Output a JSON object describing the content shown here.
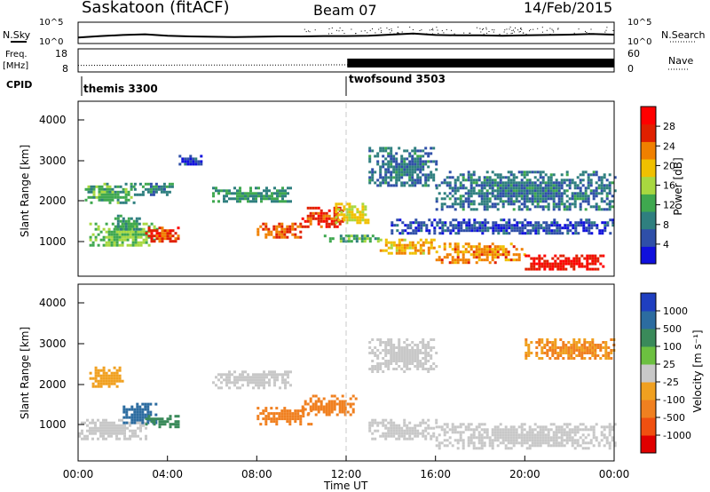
{
  "header": {
    "station": "Saskatoon (fitACF)",
    "beam": "Beam 07",
    "date": "14/Feb/2015"
  },
  "labels": {
    "nsky": "N.Sky",
    "nsearch": "N.Search",
    "freq": "Freq.",
    "mhz": "[MHz]",
    "nave": "Nave",
    "cpid": "CPID",
    "power_axis": "Power [dB]",
    "velocity_axis": "Velocity [m s⁻¹]",
    "ylabel": "Slant Range [km]",
    "xlabel": "Time UT"
  },
  "colors": {
    "power": [
      "#1010dd",
      "#2f4fa8",
      "#2f7f7f",
      "#3fa84f",
      "#a8d840",
      "#f0c000",
      "#f08000",
      "#e02000",
      "#ff0000"
    ],
    "velocity": [
      "#1f3fc0",
      "#2c6ca0",
      "#3a8a5a",
      "#6cc040",
      "#c8c8c8",
      "#f0a020",
      "#f08020",
      "#f05010",
      "#e00000"
    ],
    "frame_separator": "#c0c0c0"
  },
  "chart_data": [
    {
      "type": "line",
      "panel": "noise",
      "series": [
        {
          "name": "N.Sky",
          "x_hours": [
            0,
            1,
            2,
            3,
            4,
            5,
            6,
            7,
            8,
            9,
            10,
            11,
            12,
            13,
            14,
            15,
            16,
            17,
            18,
            19,
            20,
            21,
            22,
            23,
            24
          ],
          "values_log10": [
            1.2,
            1.6,
            1.9,
            2.1,
            1.7,
            1.5,
            1.4,
            1.3,
            1.4,
            1.5,
            1.5,
            1.6,
            1.6,
            1.7,
            2.0,
            2.3,
            1.9,
            1.8,
            1.8,
            1.7,
            1.8,
            1.9,
            2.0,
            2.2,
            2.0
          ]
        },
        {
          "name": "N.Search",
          "x_hours": [],
          "values_log10": []
        }
      ],
      "yticks": [
        "10^5",
        "10^0"
      ],
      "yticks_right": [
        "10^5",
        "10^0"
      ]
    },
    {
      "type": "line",
      "panel": "freq_nave",
      "series": [
        {
          "name": "Freq.",
          "x_hours": [
            0,
            3,
            6,
            9,
            12,
            12.05,
            24
          ],
          "values_mhz": [
            10.9,
            11.0,
            11.1,
            11.1,
            11.2,
            11.2,
            11.2
          ]
        },
        {
          "name": "Nave",
          "x_hours": [
            0,
            12,
            12.05,
            24
          ],
          "values": [
            0,
            0,
            20,
            20
          ]
        }
      ],
      "yticks": [
        "18",
        "8"
      ],
      "yticks_right": [
        "60",
        "0"
      ]
    },
    {
      "type": "table",
      "panel": "cpid",
      "segments": [
        {
          "start_h": 0,
          "label": "themis 3300"
        },
        {
          "start_h": 12,
          "label": "twofsound 3503"
        }
      ]
    },
    {
      "type": "heatmap",
      "panel": "power",
      "ylim": [
        180,
        4500
      ],
      "yticks": [
        "1000",
        "2000",
        "3000",
        "4000"
      ],
      "colorbar_ticks": [
        "28",
        "24",
        "20",
        "16",
        "12",
        "8",
        "4"
      ],
      "blobs": [
        {
          "t": [
            0.5,
            3.5
          ],
          "r": [
            900,
            1500
          ],
          "v": 14
        },
        {
          "t": [
            1.5,
            2.8
          ],
          "r": [
            1300,
            1700
          ],
          "v": 10
        },
        {
          "t": [
            3.0,
            4.5
          ],
          "r": [
            1000,
            1400
          ],
          "v": 26
        },
        {
          "t": [
            0.3,
            2.5
          ],
          "r": [
            2000,
            2500
          ],
          "v": 12
        },
        {
          "t": [
            2.5,
            4.2
          ],
          "r": [
            2200,
            2500
          ],
          "v": 9
        },
        {
          "t": [
            4.5,
            5.5
          ],
          "r": [
            2900,
            3200
          ],
          "v": 5
        },
        {
          "t": [
            6.0,
            9.5
          ],
          "r": [
            2000,
            2400
          ],
          "v": 10
        },
        {
          "t": [
            8.0,
            10.0
          ],
          "r": [
            1100,
            1500
          ],
          "v": 24
        },
        {
          "t": [
            10.0,
            11.8
          ],
          "r": [
            1400,
            1900
          ],
          "v": 26
        },
        {
          "t": [
            11.5,
            13.0
          ],
          "r": [
            1500,
            2000
          ],
          "v": 18
        },
        {
          "t": [
            11.0,
            13.5
          ],
          "r": [
            1000,
            1200
          ],
          "v": 12
        },
        {
          "t": [
            13.5,
            16.0
          ],
          "r": [
            700,
            1100
          ],
          "v": 20
        },
        {
          "t": [
            16.0,
            20.0
          ],
          "r": [
            500,
            1000
          ],
          "v": 22
        },
        {
          "t": [
            20.0,
            23.5
          ],
          "r": [
            300,
            700
          ],
          "v": 28
        },
        {
          "t": [
            14.0,
            24.0
          ],
          "r": [
            1200,
            1600
          ],
          "v": 5
        },
        {
          "t": [
            13.0,
            16.0
          ],
          "r": [
            2400,
            3400
          ],
          "v": 8
        },
        {
          "t": [
            16.0,
            24.0
          ],
          "r": [
            1800,
            2800
          ],
          "v": 8
        }
      ]
    },
    {
      "type": "heatmap",
      "panel": "velocity",
      "ylim": [
        180,
        4500
      ],
      "yticks": [
        "1000",
        "2000",
        "3000",
        "4000"
      ],
      "colorbar_ticks": [
        "1000",
        "500",
        "100",
        "25",
        "-25",
        "-100",
        "-500",
        "-1000"
      ],
      "blobs": [
        {
          "t": [
            0.0,
            3.0
          ],
          "r": [
            700,
            1200
          ],
          "v": 0
        },
        {
          "t": [
            2.0,
            3.5
          ],
          "r": [
            1100,
            1600
          ],
          "v": 150
        },
        {
          "t": [
            3.0,
            4.5
          ],
          "r": [
            1000,
            1300
          ],
          "v": 50
        },
        {
          "t": [
            0.5,
            2.0
          ],
          "r": [
            2000,
            2500
          ],
          "v": -80
        },
        {
          "t": [
            6.0,
            9.5
          ],
          "r": [
            2000,
            2400
          ],
          "v": 0
        },
        {
          "t": [
            8.0,
            10.5
          ],
          "r": [
            1100,
            1500
          ],
          "v": -200
        },
        {
          "t": [
            10.0,
            12.5
          ],
          "r": [
            1300,
            1800
          ],
          "v": -400
        },
        {
          "t": [
            13.0,
            16.0
          ],
          "r": [
            700,
            1200
          ],
          "v": 0
        },
        {
          "t": [
            16.0,
            24.0
          ],
          "r": [
            500,
            1100
          ],
          "v": 0
        },
        {
          "t": [
            13.0,
            16.0
          ],
          "r": [
            2400,
            3200
          ],
          "v": 0
        },
        {
          "t": [
            20.0,
            24.0
          ],
          "r": [
            2700,
            3200
          ],
          "v": -100
        }
      ]
    }
  ],
  "xaxis": {
    "ticks": [
      "00:00",
      "04:00",
      "08:00",
      "12:00",
      "16:00",
      "20:00",
      "00:00"
    ]
  }
}
